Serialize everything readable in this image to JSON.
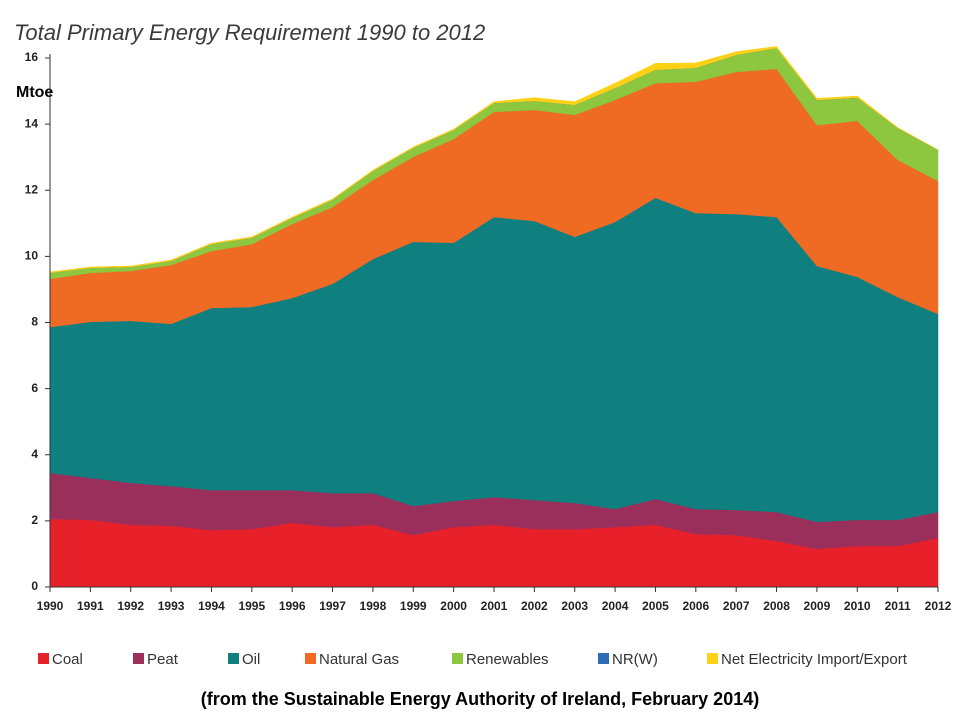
{
  "chart_data": {
    "type": "stacked-area",
    "title": "Total Primary Energy Requirement 1990 to 2012",
    "y_label": "Mtoe",
    "footnote": "(from the Sustainable Energy Authority of Ireland, February 2014)",
    "x": [
      1990,
      1991,
      1992,
      1993,
      1994,
      1995,
      1996,
      1997,
      1998,
      1999,
      2000,
      2001,
      2002,
      2003,
      2004,
      2005,
      2006,
      2007,
      2008,
      2009,
      2010,
      2011,
      2012
    ],
    "xlim": [
      1990,
      2012
    ],
    "xticks": [
      1990,
      1991,
      1992,
      1993,
      1994,
      1995,
      1996,
      1997,
      1998,
      1999,
      2000,
      2001,
      2002,
      2003,
      2004,
      2005,
      2006,
      2007,
      2008,
      2009,
      2010,
      2011,
      2012
    ],
    "ylim": [
      0,
      16
    ],
    "yticks": [
      0,
      2,
      4,
      6,
      8,
      10,
      12,
      14,
      16
    ],
    "series": [
      {
        "name": "Coal",
        "color": "#e8202a",
        "values": [
          2.06,
          2.03,
          1.88,
          1.85,
          1.72,
          1.75,
          1.94,
          1.81,
          1.88,
          1.57,
          1.81,
          1.88,
          1.75,
          1.75,
          1.81,
          1.88,
          1.6,
          1.57,
          1.39,
          1.15,
          1.24,
          1.24,
          1.48
        ]
      },
      {
        "name": "Peat",
        "color": "#9b2f5c",
        "values": [
          1.39,
          1.27,
          1.27,
          1.2,
          1.21,
          1.18,
          0.99,
          1.03,
          0.96,
          0.88,
          0.79,
          0.84,
          0.88,
          0.79,
          0.55,
          0.78,
          0.76,
          0.76,
          0.88,
          0.82,
          0.79,
          0.79,
          0.79
        ]
      },
      {
        "name": "Oil",
        "color": "#0f7f7f",
        "values": [
          4.41,
          4.72,
          4.9,
          4.91,
          5.51,
          5.54,
          5.81,
          6.33,
          7.08,
          7.99,
          7.81,
          8.47,
          8.44,
          8.05,
          8.68,
          9.11,
          8.95,
          8.95,
          8.92,
          7.74,
          7.35,
          6.74,
          5.99
        ]
      },
      {
        "name": "Natural Gas",
        "color": "#ef6a23",
        "values": [
          1.46,
          1.48,
          1.51,
          1.78,
          1.72,
          1.9,
          2.24,
          2.32,
          2.39,
          2.57,
          3.14,
          3.18,
          3.36,
          3.69,
          3.69,
          3.47,
          3.97,
          4.3,
          4.48,
          4.26,
          4.72,
          4.15,
          4.02
        ]
      },
      {
        "name": "Renewables",
        "color": "#8dc63f",
        "values": [
          0.18,
          0.15,
          0.12,
          0.12,
          0.21,
          0.19,
          0.18,
          0.22,
          0.27,
          0.27,
          0.27,
          0.27,
          0.27,
          0.3,
          0.36,
          0.4,
          0.42,
          0.51,
          0.63,
          0.76,
          0.7,
          0.96,
          0.94
        ]
      },
      {
        "name": "NR(W)",
        "color": "#2e6db4",
        "values": [
          0,
          0,
          0,
          0,
          0,
          0,
          0,
          0,
          0,
          0,
          0,
          0,
          0,
          0,
          0,
          0,
          0,
          0,
          0,
          0,
          0,
          0,
          0
        ]
      },
      {
        "name": "Net Electricity Import/Export",
        "color": "#fcd116",
        "values": [
          0.03,
          0.03,
          0.03,
          0.03,
          0.03,
          0.03,
          0.03,
          0.03,
          0.03,
          0.03,
          0.03,
          0.04,
          0.1,
          0.1,
          0.15,
          0.2,
          0.15,
          0.1,
          0.05,
          0.05,
          0.05,
          0.02,
          0
        ]
      }
    ]
  }
}
